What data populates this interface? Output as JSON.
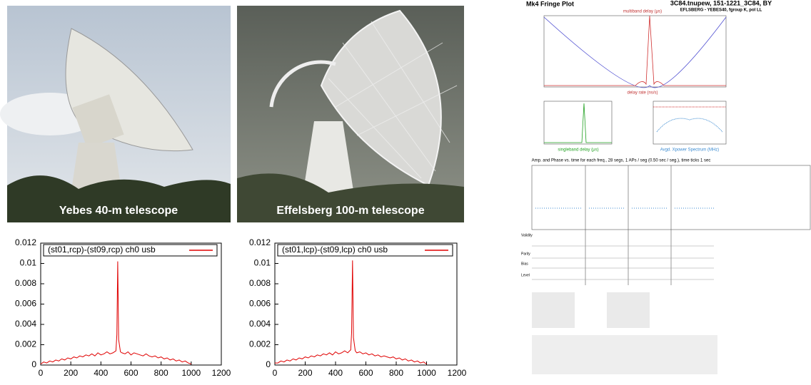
{
  "photos": [
    {
      "caption": "Yebes 40-m telescope"
    },
    {
      "caption": "Effelsberg 100-m telescope"
    }
  ],
  "chart_data": [
    {
      "type": "line",
      "x": [
        0,
        20,
        40,
        60,
        80,
        100,
        120,
        140,
        160,
        180,
        200,
        220,
        240,
        260,
        280,
        300,
        320,
        340,
        360,
        380,
        400,
        420,
        440,
        460,
        480,
        500,
        506,
        512,
        518,
        530,
        540,
        560,
        580,
        600,
        620,
        640,
        660,
        680,
        700,
        720,
        740,
        760,
        780,
        800,
        820,
        840,
        860,
        880,
        900,
        920,
        940,
        960,
        980,
        1000
      ],
      "series": [
        {
          "name": "(st01,rcp)-(st09,rcp) ch0 usb",
          "color": "#e00000",
          "values": [
            0.0001,
            0.0003,
            0.0002,
            0.0004,
            0.0003,
            0.0005,
            0.0004,
            0.0006,
            0.0005,
            0.0007,
            0.0006,
            0.0008,
            0.0007,
            0.0009,
            0.0008,
            0.001,
            0.0009,
            0.0011,
            0.0009,
            0.0012,
            0.001,
            0.0011,
            0.0013,
            0.0011,
            0.0012,
            0.0014,
            0.003,
            0.0102,
            0.0025,
            0.0013,
            0.0012,
            0.0011,
            0.0013,
            0.001,
            0.0012,
            0.0011,
            0.001,
            0.0009,
            0.0011,
            0.0009,
            0.0008,
            0.0009,
            0.0007,
            0.0008,
            0.0006,
            0.0007,
            0.0005,
            0.0006,
            0.0004,
            0.0005,
            0.0003,
            0.0004,
            0.0002,
            0.0001
          ]
        }
      ],
      "xlim": [
        0,
        1200
      ],
      "xticks": [
        0,
        200,
        400,
        600,
        800,
        1000,
        1200
      ],
      "ylim": [
        0,
        0.012
      ],
      "yticks": [
        0,
        0.002,
        0.004,
        0.006,
        0.008,
        0.01,
        0.012
      ]
    },
    {
      "type": "line",
      "x": [
        0,
        20,
        40,
        60,
        80,
        100,
        120,
        140,
        160,
        180,
        200,
        220,
        240,
        260,
        280,
        300,
        320,
        340,
        360,
        380,
        400,
        420,
        440,
        460,
        480,
        500,
        506,
        512,
        518,
        530,
        540,
        560,
        580,
        600,
        620,
        640,
        660,
        680,
        700,
        720,
        740,
        760,
        780,
        800,
        820,
        840,
        860,
        880,
        900,
        920,
        940,
        960,
        980,
        1000
      ],
      "series": [
        {
          "name": "(st01,lcp)-(st09,lcp) ch0 usb",
          "color": "#e00000",
          "values": [
            0.0002,
            0.0002,
            0.0004,
            0.0003,
            0.0005,
            0.0004,
            0.0006,
            0.0005,
            0.0007,
            0.0006,
            0.0008,
            0.0007,
            0.0009,
            0.0008,
            0.001,
            0.0009,
            0.0011,
            0.001,
            0.0012,
            0.001,
            0.0013,
            0.0011,
            0.0012,
            0.0014,
            0.0012,
            0.0015,
            0.0032,
            0.0103,
            0.0027,
            0.0014,
            0.0012,
            0.0013,
            0.0011,
            0.0012,
            0.001,
            0.0011,
            0.0009,
            0.001,
            0.0008,
            0.0009,
            0.0008,
            0.0007,
            0.0008,
            0.0006,
            0.0007,
            0.0005,
            0.0006,
            0.0004,
            0.0005,
            0.0003,
            0.0004,
            0.0002,
            0.0003,
            0.0001
          ]
        }
      ],
      "xlim": [
        0,
        1200
      ],
      "xticks": [
        0,
        200,
        400,
        600,
        800,
        1000,
        1200
      ],
      "ylim": [
        0,
        0.012
      ],
      "yticks": [
        0,
        0.002,
        0.004,
        0.006,
        0.008,
        0.01,
        0.012
      ]
    }
  ],
  "fringe_plot": {
    "title": "Mk4 Fringe Plot",
    "header": "3C84.tnupew, 151-1221_3C84, BY",
    "subheader": "EFLSBERG - YEBES40, fgroup K, pol LL",
    "top_axis_label": "multiband delay (μs)",
    "bottom_axis_label": "delay rate (ns/s)",
    "sbd_label": "singleband delay (μs)",
    "spectrum_label": "Avgd. Xpower Spectrum (MHz)",
    "time_caption": "Amp. and Phase vs. time for each freq., 28 segs, 1 APs / seg (0.50 sec / seg.), time ticks 1 sec",
    "side_labels": [
      "Validity",
      "Parity",
      "Bias",
      "Level"
    ]
  }
}
